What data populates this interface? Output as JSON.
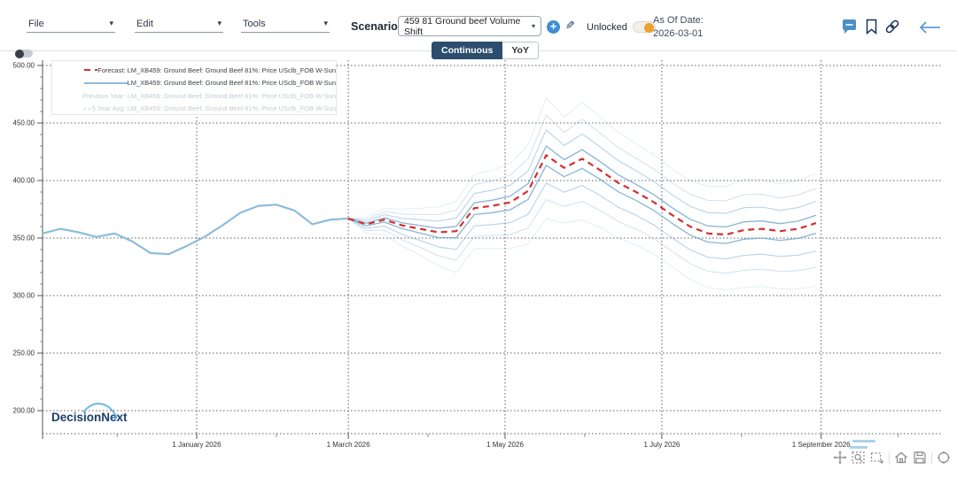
{
  "header": {
    "menus": [
      {
        "label": "File"
      },
      {
        "label": "Edit"
      },
      {
        "label": "Tools"
      }
    ],
    "scenario_label": "Scenario",
    "scenario_value": "459 81 Ground beef Volume Shift",
    "unlocked_label": "Unlocked",
    "unlocked_state": "on",
    "as_of_date_label": "As Of Date:",
    "as_of_date_value": "2026-03-01"
  },
  "tabs": [
    {
      "label": "Continuous",
      "active": true
    },
    {
      "label": "YoY",
      "active": false
    }
  ],
  "legend": {
    "items": [
      {
        "label": "Forecast: LM_XB459: Ground Beef: Ground Beef 81%: Price USclb_FOB W-Sun",
        "enabled": true,
        "marker": "red-dashed-line"
      },
      {
        "label": "LM_XB459: Ground Beef: Ground Beef 81%: Price USclb_FOB W-Sun",
        "enabled": true,
        "marker": "blue-line-circle"
      },
      {
        "label": "Previous Year: LM_XB459: Ground Beef: Ground Beef 81%: Price USclb_FOB W-Sun",
        "enabled": false,
        "marker": "dotted-triangle"
      },
      {
        "label": "5 Year Avg: LM_XB459: Ground Beef: Ground Beef 81%: Price USclb_FOB W-Sun",
        "enabled": false,
        "marker": "dotted-circle"
      }
    ]
  },
  "brand": {
    "decision": "Decision",
    "next": "Next"
  },
  "icons": {
    "menu_caret": "▾",
    "select_caret": "▾",
    "add": "+",
    "edit": "✎",
    "back_arrow": "←"
  },
  "colors": {
    "accent_navy": "#2d4d6e",
    "accent_blue": "#5b9bd5",
    "toggle_orange": "#efa12f",
    "forecast_red": "#d62f2f",
    "actual_blue": "#8cbcdc",
    "fan_blue": "#5f9ec9",
    "grid": "#606060",
    "disabled_legend": "#c2ccd4"
  },
  "chart_data": {
    "type": "line",
    "x_axis": {
      "base_date": "2025-11-02",
      "labeled_ticks": [
        {
          "date": "2026-01-01",
          "label": "1 January 2026"
        },
        {
          "date": "2026-03-01",
          "label": "1 March 2026"
        },
        {
          "date": "2026-05-01",
          "label": "1 May 2026"
        },
        {
          "date": "2026-07-01",
          "label": "1 July 2026"
        },
        {
          "date": "2026-09-01",
          "label": "1 September 2026"
        }
      ],
      "minor_ticks": [
        "2025-12-01",
        "2026-02-01",
        "2026-04-01",
        "2026-06-01",
        "2026-08-01",
        "2026-10-01"
      ]
    },
    "y_axis": {
      "min": 200,
      "max": 500,
      "major_step": 50,
      "minor_step": 10,
      "tick_values": [
        500,
        450,
        400,
        350,
        300,
        250,
        200
      ],
      "tick_labels": [
        "500.00",
        "450.00",
        "400.00",
        "350.00",
        "300.00",
        "250.00",
        "200.00"
      ]
    },
    "series": [
      {
        "id": "actual",
        "name": "LM_XB459: Ground Beef: Ground Beef 81%: Price USclb_FOB W-Sun",
        "color": "#8cbcdc",
        "line_style": "solid",
        "dates": [
          "2025-11-02",
          "2025-11-09",
          "2025-11-16",
          "2025-11-23",
          "2025-11-30",
          "2025-12-07",
          "2025-12-14",
          "2025-12-21",
          "2025-12-28",
          "2026-01-04",
          "2026-01-11",
          "2026-01-18",
          "2026-01-25",
          "2026-02-01",
          "2026-02-08",
          "2026-02-15",
          "2026-02-22",
          "2026-03-01"
        ],
        "values": [
          354,
          358,
          355,
          351,
          354,
          347,
          337,
          336,
          343,
          351,
          361,
          372,
          378,
          379,
          374,
          362,
          366,
          367
        ]
      },
      {
        "id": "forecast",
        "name": "Forecast: LM_XB459: Ground Beef: Ground Beef 81%: Price USclb_FOB W-Sun",
        "color": "#d62f2f",
        "line_style": "dashed",
        "dates": [
          "2026-03-01",
          "2026-03-08",
          "2026-03-15",
          "2026-03-22",
          "2026-03-29",
          "2026-04-05",
          "2026-04-12",
          "2026-04-19",
          "2026-04-26",
          "2026-05-03",
          "2026-05-10",
          "2026-05-17",
          "2026-05-24",
          "2026-05-31",
          "2026-06-07",
          "2026-06-14",
          "2026-06-21",
          "2026-06-28",
          "2026-07-05",
          "2026-07-12",
          "2026-07-19",
          "2026-07-26",
          "2026-08-02",
          "2026-08-09",
          "2026-08-16",
          "2026-08-23",
          "2026-08-30"
        ],
        "values": [
          367,
          362,
          366,
          361,
          358,
          355,
          356,
          376,
          378,
          381,
          391,
          422,
          411,
          419,
          409,
          398,
          390,
          381,
          370,
          360,
          354,
          353,
          357,
          358,
          356,
          358,
          363
        ]
      }
    ],
    "uncertainty_fan": {
      "color": "#5f9ec9",
      "levels": [
        {
          "factor": 1.0,
          "opacity": 0.18,
          "width": 1.0
        },
        {
          "factor": 0.7,
          "opacity": 0.3,
          "width": 1.0
        },
        {
          "factor": 0.44,
          "opacity": 0.45,
          "width": 1.1
        },
        {
          "factor": 0.16,
          "opacity": 0.75,
          "width": 1.3
        }
      ],
      "spread_upper": [
        0,
        6,
        10,
        14,
        18,
        22,
        26,
        29,
        31,
        34,
        40,
        50,
        44,
        49,
        46,
        44,
        42,
        41,
        40,
        40,
        41,
        42,
        44,
        43,
        41,
        42,
        43
      ],
      "spread_lower": [
        0,
        8,
        13,
        18,
        23,
        29,
        36,
        35,
        37,
        40,
        46,
        55,
        48,
        53,
        50,
        48,
        46,
        45,
        45,
        46,
        47,
        48,
        50,
        50,
        50,
        52,
        55
      ]
    }
  }
}
